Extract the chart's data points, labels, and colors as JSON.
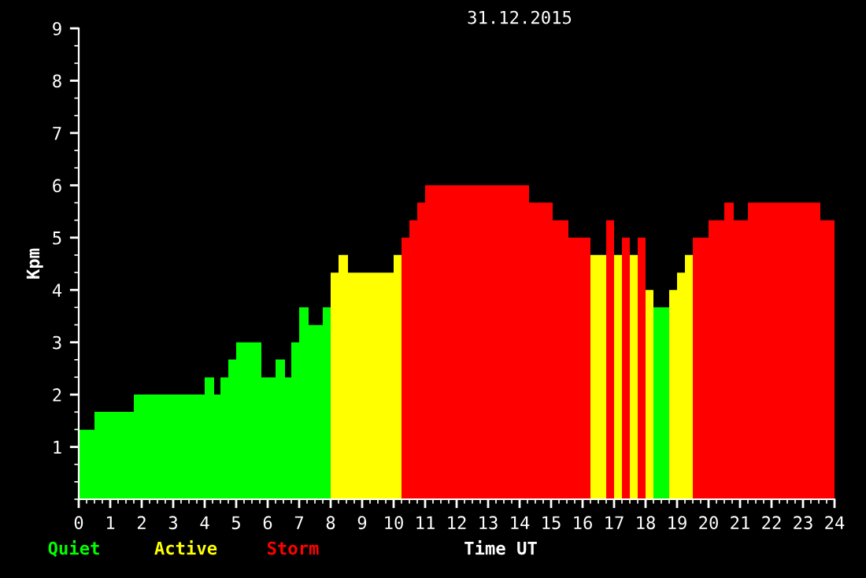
{
  "chart_data": {
    "type": "histogram",
    "title": "31.12.2015",
    "xlabel": "Time UT",
    "ylabel": "Kpm",
    "bins": [
      0,
      0.5,
      1.75,
      4.0,
      4.3,
      4.5,
      4.75,
      5.0,
      5.8,
      6.25,
      6.55,
      6.75,
      7.0,
      7.3,
      7.75,
      8.0,
      8.25,
      8.55,
      10.0,
      10.25,
      10.5,
      10.75,
      11.0,
      14.3,
      15.05,
      15.55,
      16.25,
      16.75,
      17.0,
      17.25,
      17.5,
      17.75,
      18.0,
      18.25,
      18.75,
      19.0,
      19.25,
      19.5,
      20.0,
      20.5,
      20.8,
      21.25,
      23.55,
      24.0
    ],
    "series": [
      {
        "name": "Quiet",
        "color": "#00ff00",
        "values": [
          1.33,
          1.67,
          2,
          2.33,
          2,
          2.33,
          2.67,
          3,
          2.33,
          2.67,
          2.33,
          3,
          3.67,
          3.33,
          3.67,
          null,
          null,
          null,
          null,
          null,
          null,
          null,
          null,
          null,
          null,
          null,
          null,
          null,
          null,
          null,
          null,
          null,
          null,
          3.67,
          null,
          null,
          null,
          null,
          null,
          null,
          null,
          null,
          null
        ]
      },
      {
        "name": "Active",
        "color": "#ffff00",
        "values": [
          null,
          null,
          null,
          null,
          null,
          null,
          null,
          null,
          null,
          null,
          null,
          null,
          null,
          null,
          null,
          4.33,
          4.67,
          4.33,
          4.67,
          null,
          null,
          null,
          null,
          null,
          null,
          null,
          4.67,
          null,
          4.67,
          null,
          4.67,
          null,
          4,
          null,
          4,
          4.33,
          4.67,
          null,
          null,
          null,
          null,
          null,
          null
        ]
      },
      {
        "name": "Storm",
        "color": "#ff0000",
        "values": [
          null,
          null,
          null,
          null,
          null,
          null,
          null,
          null,
          null,
          null,
          null,
          null,
          null,
          null,
          null,
          null,
          null,
          null,
          null,
          5,
          5.33,
          5.67,
          6,
          5.67,
          5.33,
          5,
          null,
          5.33,
          null,
          5,
          null,
          5,
          null,
          null,
          null,
          null,
          null,
          5,
          5.33,
          5.67,
          5.33,
          5.67,
          5.33
        ]
      }
    ],
    "xlim": [
      0,
      24
    ],
    "xticks": [
      0,
      1,
      2,
      3,
      4,
      5,
      6,
      7,
      8,
      9,
      10,
      11,
      12,
      13,
      14,
      15,
      16,
      17,
      18,
      19,
      20,
      21,
      22,
      23,
      24
    ],
    "ylim": [
      0,
      9
    ],
    "yticks": [
      1,
      2,
      3,
      4,
      5,
      6,
      7,
      8,
      9
    ],
    "grid": false,
    "legend": "bottom left"
  }
}
